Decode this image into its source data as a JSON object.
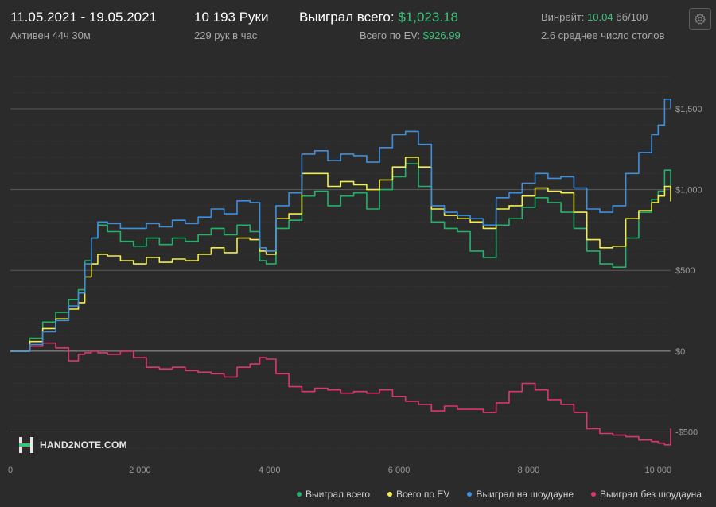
{
  "header": {
    "date_range": "11.05.2021 - 19.05.2021",
    "active": "Активен 44ч 30м",
    "hands": "10 193 Руки",
    "hands_per_hour": "229 рук в час",
    "won_total_label": "Выиграл всего:",
    "won_total_value": "$1,023.18",
    "ev_total_label": "Всего по EV:",
    "ev_total_value": "$926.99",
    "winrate_label": "Винрейт:",
    "winrate_value": "10.04",
    "winrate_unit": "бб/100",
    "avg_tables": "2.6 среднее число столов"
  },
  "logo": {
    "text": "HAND2NOTE.COM"
  },
  "colors": {
    "background": "#2b2b2b",
    "won_total": "#22b36a",
    "ev_total": "#f2ee4a",
    "showdown": "#3d8fe0",
    "non_showdown": "#e0356b",
    "positive_text": "#3cc47c"
  },
  "chart_data": {
    "type": "line",
    "xlim": [
      0,
      10193
    ],
    "ylim": [
      -650,
      1800
    ],
    "x_ticks": [
      {
        "value": 0,
        "label": "0"
      },
      {
        "value": 2000,
        "label": "2 000"
      },
      {
        "value": 4000,
        "label": "4 000"
      },
      {
        "value": 6000,
        "label": "6 000"
      },
      {
        "value": 8000,
        "label": "8 000"
      },
      {
        "value": 10000,
        "label": "10 000"
      }
    ],
    "y_ticks": [
      {
        "value": 1500,
        "label": "$1,500"
      },
      {
        "value": 1000,
        "label": "$1,000"
      },
      {
        "value": 500,
        "label": "$500"
      },
      {
        "value": 0,
        "label": "$0"
      },
      {
        "value": -500,
        "label": "-$500"
      }
    ],
    "legend_position": "bottom-right",
    "x": [
      0,
      300,
      500,
      700,
      900,
      1050,
      1150,
      1250,
      1350,
      1500,
      1700,
      1900,
      2100,
      2300,
      2500,
      2700,
      2900,
      3100,
      3300,
      3500,
      3700,
      3850,
      3950,
      4100,
      4300,
      4500,
      4700,
      4900,
      5100,
      5300,
      5500,
      5700,
      5900,
      6100,
      6300,
      6500,
      6700,
      6900,
      7100,
      7300,
      7500,
      7700,
      7900,
      8100,
      8300,
      8500,
      8700,
      8900,
      9100,
      9300,
      9500,
      9700,
      9900,
      10000,
      10100,
      10193
    ],
    "series": [
      {
        "name": "Выиграл всего",
        "color": "#22b36a",
        "values": [
          0,
          80,
          180,
          240,
          320,
          380,
          560,
          700,
          780,
          740,
          680,
          650,
          700,
          660,
          700,
          680,
          720,
          760,
          720,
          780,
          740,
          560,
          540,
          760,
          810,
          960,
          990,
          900,
          960,
          980,
          880,
          1000,
          1080,
          1160,
          1020,
          800,
          760,
          740,
          620,
          580,
          780,
          820,
          890,
          950,
          920,
          860,
          760,
          620,
          540,
          520,
          700,
          860,
          940,
          990,
          1120,
          1023
        ]
      },
      {
        "name": "Всего по EV",
        "color": "#f2ee4a",
        "values": [
          0,
          60,
          140,
          200,
          260,
          300,
          460,
          540,
          600,
          590,
          560,
          540,
          580,
          550,
          570,
          560,
          600,
          640,
          610,
          700,
          690,
          620,
          600,
          820,
          850,
          1100,
          1100,
          1020,
          1050,
          1030,
          1000,
          1060,
          1140,
          1200,
          1140,
          880,
          840,
          820,
          800,
          760,
          880,
          900,
          960,
          1010,
          990,
          980,
          860,
          690,
          640,
          650,
          820,
          870,
          920,
          960,
          1020,
          927
        ]
      },
      {
        "name": "Выиграл на шоудауне",
        "color": "#3d8fe0",
        "values": [
          0,
          40,
          120,
          190,
          280,
          360,
          540,
          700,
          800,
          790,
          760,
          760,
          790,
          770,
          810,
          790,
          830,
          880,
          850,
          930,
          920,
          640,
          620,
          900,
          980,
          1220,
          1240,
          1180,
          1220,
          1210,
          1170,
          1260,
          1340,
          1360,
          1280,
          900,
          860,
          840,
          820,
          780,
          950,
          980,
          1040,
          1100,
          1070,
          1080,
          1010,
          880,
          860,
          900,
          1100,
          1230,
          1340,
          1400,
          1560,
          1503
        ]
      },
      {
        "name": "Выиграл без шоудауна",
        "color": "#e0356b",
        "values": [
          0,
          30,
          50,
          20,
          -60,
          -20,
          -10,
          0,
          -10,
          -20,
          0,
          -40,
          -100,
          -110,
          -100,
          -120,
          -130,
          -140,
          -160,
          -100,
          -80,
          -40,
          -50,
          -140,
          -220,
          -250,
          -230,
          -240,
          -260,
          -250,
          -260,
          -240,
          -280,
          -310,
          -330,
          -370,
          -340,
          -360,
          -360,
          -380,
          -320,
          -250,
          -200,
          -240,
          -300,
          -330,
          -380,
          -480,
          -510,
          -520,
          -530,
          -550,
          -560,
          -570,
          -580,
          -480
        ]
      }
    ]
  }
}
